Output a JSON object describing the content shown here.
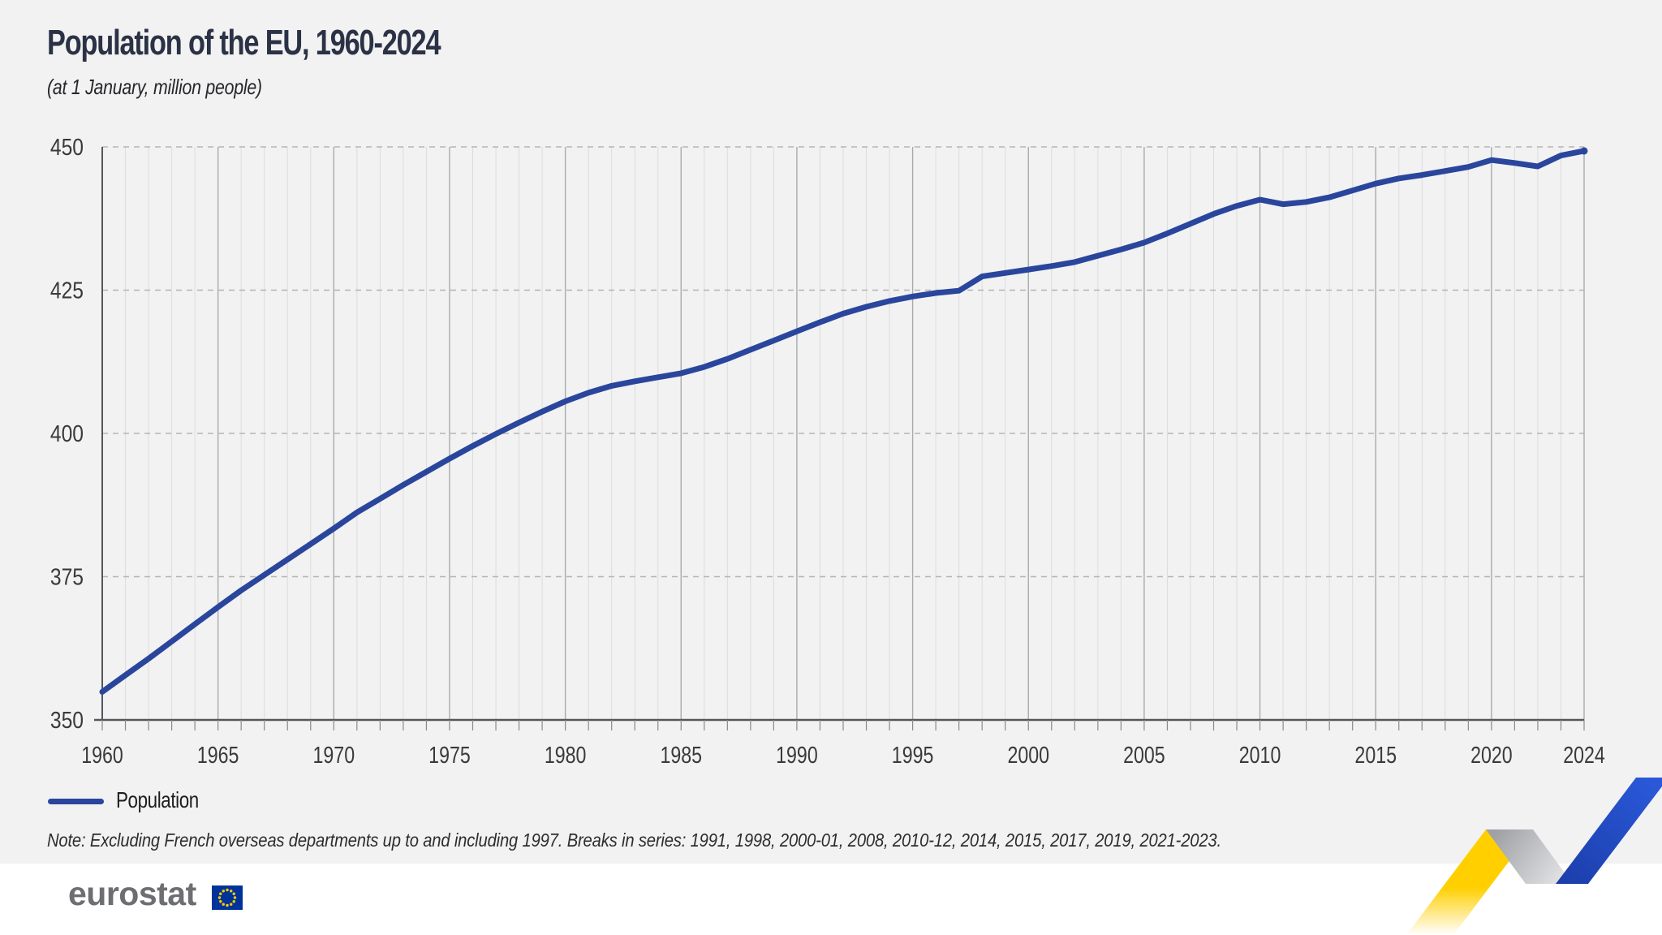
{
  "header": {
    "title": "Population of the EU, 1960-2024",
    "subtitle": "(at 1 January, million people)"
  },
  "legend": {
    "label": "Population",
    "swatch_color": "#2a469c"
  },
  "note": {
    "text": "Note: Excluding French overseas departments up to and including 1997. Breaks in series: 1991, 1998, 2000-01, 2008, 2010-12, 2014, 2015, 2017, 2019, 2021-2023."
  },
  "footer": {
    "logo_text": "eurostat"
  },
  "colors": {
    "background": "#f2f2f3",
    "footer_background": "#ffffff",
    "title": "#2b3245",
    "line": "#2a469c",
    "axis": "#55565a",
    "tick": "#8a8a8c",
    "grid_minor": "#dcdcdd",
    "grid_major": "#a9aaac",
    "grid_dashed": "#b4b4b6",
    "tick_label": "#3a3a3c",
    "logo_gray": "#6d6e71",
    "flag_blue": "#003399",
    "flag_star_yellow": "#ffcc00",
    "ribbon_yellow": "#ffcf00",
    "ribbon_gray_dark": "#9fa1a6",
    "ribbon_gray_light": "#e8e8ea",
    "ribbon_blue_dark": "#1b3da9",
    "ribbon_blue_bright": "#2a58d8"
  },
  "chart_data": {
    "type": "line",
    "title": "Population of the EU, 1960-2024",
    "subtitle": "(at 1 January, million people)",
    "xlabel": "",
    "ylabel": "million people",
    "ylim": [
      350,
      450
    ],
    "yticks": [
      350,
      375,
      400,
      425,
      450
    ],
    "xtick_labels": [
      1960,
      1965,
      1970,
      1975,
      1980,
      1985,
      1990,
      1995,
      2000,
      2005,
      2010,
      2015,
      2020,
      2024
    ],
    "grid": "vertical line per year (darker every 5 years), dashed horizontal lines at 25-unit steps",
    "legend_position": "bottom-left",
    "x": [
      1960,
      1961,
      1962,
      1963,
      1964,
      1965,
      1966,
      1967,
      1968,
      1969,
      1970,
      1971,
      1972,
      1973,
      1974,
      1975,
      1976,
      1977,
      1978,
      1979,
      1980,
      1981,
      1982,
      1983,
      1984,
      1985,
      1986,
      1987,
      1988,
      1989,
      1990,
      1991,
      1992,
      1993,
      1994,
      1995,
      1996,
      1997,
      1998,
      1999,
      2000,
      2001,
      2002,
      2003,
      2004,
      2005,
      2006,
      2007,
      2008,
      2009,
      2010,
      2011,
      2012,
      2013,
      2014,
      2015,
      2016,
      2017,
      2018,
      2019,
      2020,
      2021,
      2022,
      2023,
      2024
    ],
    "series": [
      {
        "name": "Population",
        "values": [
          354.9,
          357.8,
          360.7,
          363.7,
          366.7,
          369.7,
          372.6,
          375.3,
          378.0,
          380.7,
          383.4,
          386.2,
          388.6,
          391.0,
          393.3,
          395.6,
          397.8,
          399.9,
          401.9,
          403.8,
          405.6,
          407.1,
          408.3,
          409.1,
          409.8,
          410.5,
          411.6,
          413.0,
          414.6,
          416.2,
          417.8,
          419.4,
          420.9,
          422.1,
          423.1,
          423.9,
          424.5,
          424.9,
          427.4,
          428.0,
          428.6,
          429.2,
          429.9,
          431.0,
          432.1,
          433.3,
          434.9,
          436.6,
          438.3,
          439.7,
          440.8,
          440.0,
          440.4,
          441.2,
          442.4,
          443.6,
          444.5,
          445.1,
          445.8,
          446.5,
          447.7,
          447.2,
          446.6,
          448.5,
          449.3
        ]
      }
    ],
    "breaks_in_series": [
      "1991",
      "1998",
      "2000-01",
      "2008",
      "2010-12",
      "2014",
      "2015",
      "2017",
      "2019",
      "2021-2023"
    ]
  }
}
